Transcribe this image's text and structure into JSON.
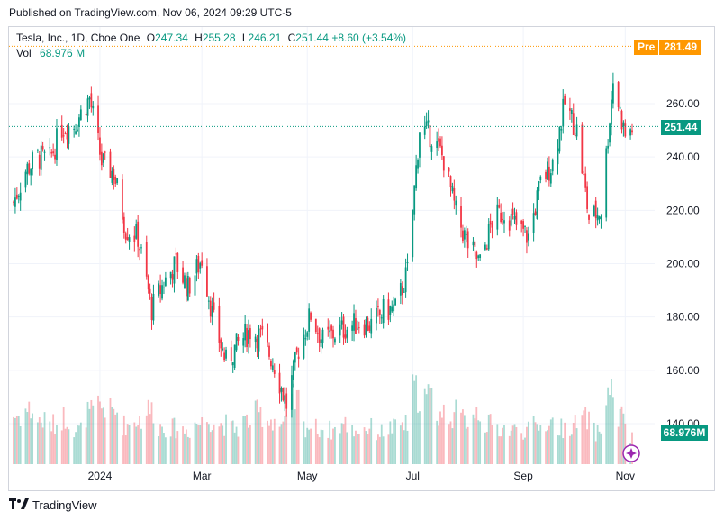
{
  "published": "Published on TradingView.com, Nov 06, 2024 09:29 UTC-5",
  "legend": {
    "name": "Tesla, Inc., 1D, Cboe One",
    "open_label": "O",
    "open": "247.34",
    "high_label": "H",
    "high": "255.28",
    "low_label": "L",
    "low": "246.21",
    "close_label": "C",
    "close": "251.44",
    "change": "+8.60 (+3.54%)",
    "vol_label": "Vol",
    "vol": "68.976 M"
  },
  "pre_market": {
    "tag": "Pre",
    "price": "281.49"
  },
  "last_price": "251.44",
  "volume_value": "68.976M",
  "brand": "TradingView",
  "colors": {
    "up": "#089981",
    "down": "#f23645",
    "grid": "#f0f3fa",
    "pre": "#ff9800"
  },
  "chart_data": {
    "type": "candlestick",
    "ylim": [
      130,
      282
    ],
    "y_ticks": [
      "260.00",
      "240.00",
      "220.00",
      "200.00",
      "180.00",
      "160.00",
      "140.00"
    ],
    "y_tick_values": [
      260,
      240,
      220,
      200,
      180,
      160,
      140
    ],
    "x_ticks": [
      "2024",
      "Mar",
      "May",
      "Jul",
      "Sep",
      "Nov"
    ],
    "x_tick_dates": [
      "2024-01-02",
      "2024-03-01",
      "2024-05-01",
      "2024-07-01",
      "2024-09-03",
      "2024-11-01"
    ],
    "pre_market_price": 281.49,
    "last_close": 251.44,
    "close_series": [
      [
        "2023-11-13",
        223
      ],
      [
        "2023-11-20",
        235
      ],
      [
        "2023-11-27",
        240
      ],
      [
        "2023-12-04",
        239
      ],
      [
        "2023-12-11",
        251
      ],
      [
        "2023-12-18",
        252
      ],
      [
        "2023-12-27",
        262
      ],
      [
        "2024-01-03",
        238
      ],
      [
        "2024-01-10",
        234
      ],
      [
        "2024-01-17",
        213
      ],
      [
        "2024-01-24",
        210
      ],
      [
        "2024-02-01",
        183
      ],
      [
        "2024-02-08",
        193
      ],
      [
        "2024-02-15",
        200
      ],
      [
        "2024-02-22",
        191
      ],
      [
        "2024-03-01",
        202
      ],
      [
        "2024-03-08",
        178
      ],
      [
        "2024-03-15",
        163
      ],
      [
        "2024-03-22",
        170
      ],
      [
        "2024-03-29",
        175
      ],
      [
        "2024-04-05",
        172
      ],
      [
        "2024-04-12",
        162
      ],
      [
        "2024-04-19",
        147
      ],
      [
        "2024-04-26",
        168
      ],
      [
        "2024-05-03",
        181
      ],
      [
        "2024-05-10",
        171
      ],
      [
        "2024-05-17",
        174
      ],
      [
        "2024-05-24",
        176
      ],
      [
        "2024-05-31",
        178
      ],
      [
        "2024-06-07",
        177
      ],
      [
        "2024-06-14",
        182
      ],
      [
        "2024-06-21",
        183
      ],
      [
        "2024-06-28",
        197
      ],
      [
        "2024-07-05",
        251
      ],
      [
        "2024-07-12",
        248
      ],
      [
        "2024-07-19",
        239
      ],
      [
        "2024-07-26",
        219
      ],
      [
        "2024-08-02",
        207
      ],
      [
        "2024-08-09",
        200
      ],
      [
        "2024-08-16",
        216
      ],
      [
        "2024-08-23",
        220
      ],
      [
        "2024-08-30",
        214
      ],
      [
        "2024-09-06",
        210
      ],
      [
        "2024-09-13",
        230
      ],
      [
        "2024-09-20",
        238
      ],
      [
        "2024-09-27",
        260
      ],
      [
        "2024-10-04",
        250
      ],
      [
        "2024-10-11",
        217
      ],
      [
        "2024-10-18",
        220
      ],
      [
        "2024-10-25",
        269
      ],
      [
        "2024-11-01",
        248
      ],
      [
        "2024-11-05",
        251
      ]
    ],
    "volume_scale_max": 200,
    "volume_levels": [
      135,
      150,
      120,
      110,
      130,
      95,
      140,
      160,
      145,
      110,
      125,
      150,
      105,
      100,
      95,
      115,
      125,
      110,
      100,
      120,
      140,
      125,
      110,
      175,
      105,
      100,
      95,
      110,
      95,
      100,
      90,
      100,
      110,
      200,
      185,
      140,
      140,
      125,
      150,
      110,
      100,
      95,
      95,
      105,
      115,
      100,
      110,
      125,
      90,
      200,
      130,
      69
    ]
  }
}
